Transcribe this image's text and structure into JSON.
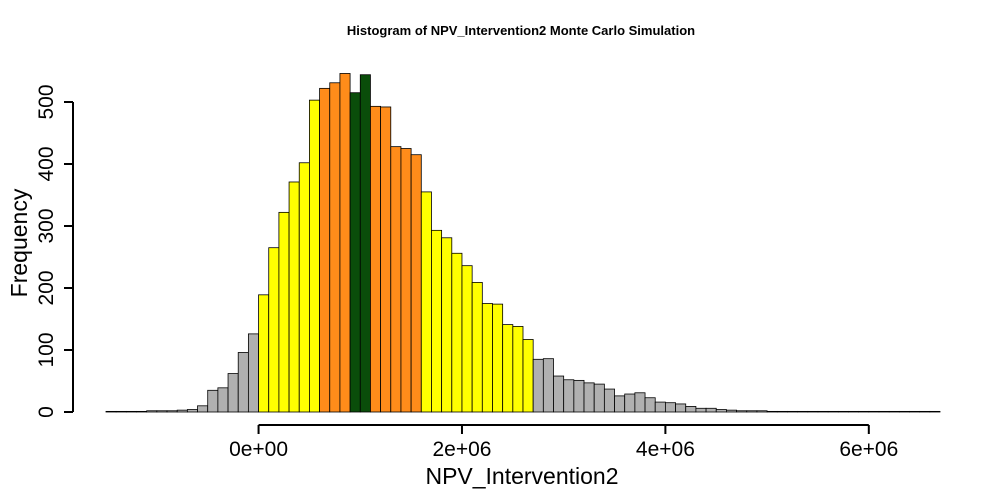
{
  "chart_data": {
    "type": "bar",
    "subtype": "histogram",
    "title": "Histogram of  NPV_Intervention2  Monte Carlo Simulation",
    "xlabel": "NPV_Intervention2",
    "ylabel": "Frequency",
    "bin_start": -1500000,
    "bin_width": 100000,
    "xlim": [
      -1500000,
      6700000
    ],
    "ylim": [
      0,
      550
    ],
    "x_ticks": [
      0,
      2000000,
      4000000,
      6000000
    ],
    "x_tick_labels": [
      "0e+00",
      "2e+06",
      "4e+06",
      "6e+06"
    ],
    "y_ticks": [
      0,
      100,
      200,
      300,
      400,
      500
    ],
    "y_tick_labels": [
      "0",
      "100",
      "200",
      "300",
      "400",
      "500"
    ],
    "grid": false,
    "legend": "none",
    "colors": {
      "gray": "#b0b0b0",
      "yellow": "#ffff00",
      "orange": "#ff8c1a",
      "green": "#0a4d0a"
    },
    "values": [
      1,
      1,
      1,
      1,
      2,
      2,
      2,
      3,
      4,
      10,
      35,
      39,
      62,
      96,
      126,
      189,
      265,
      322,
      371,
      402,
      503,
      522,
      531,
      546,
      515,
      544,
      493,
      492,
      428,
      425,
      415,
      355,
      293,
      281,
      256,
      236,
      209,
      175,
      174,
      141,
      138,
      117,
      85,
      86,
      58,
      52,
      51,
      47,
      45,
      37,
      26,
      29,
      31,
      23,
      16,
      15,
      13,
      9,
      6,
      6,
      4,
      3,
      2,
      2,
      2,
      1,
      1,
      1,
      1,
      1,
      1,
      1,
      1,
      1,
      1,
      1,
      1,
      1,
      1,
      1,
      1,
      1
    ],
    "bar_colors": [
      "gray",
      "gray",
      "gray",
      "gray",
      "gray",
      "gray",
      "gray",
      "gray",
      "gray",
      "gray",
      "gray",
      "gray",
      "gray",
      "gray",
      "gray",
      "yellow",
      "yellow",
      "yellow",
      "yellow",
      "yellow",
      "yellow",
      "orange",
      "orange",
      "orange",
      "green",
      "green",
      "orange",
      "orange",
      "orange",
      "orange",
      "orange",
      "yellow",
      "yellow",
      "yellow",
      "yellow",
      "yellow",
      "yellow",
      "yellow",
      "yellow",
      "yellow",
      "yellow",
      "yellow",
      "gray",
      "gray",
      "gray",
      "gray",
      "gray",
      "gray",
      "gray",
      "gray",
      "gray",
      "gray",
      "gray",
      "gray",
      "gray",
      "gray",
      "gray",
      "gray",
      "gray",
      "gray",
      "gray",
      "gray",
      "gray",
      "gray",
      "gray",
      "gray",
      "gray",
      "gray",
      "gray",
      "gray",
      "gray",
      "gray",
      "gray",
      "gray",
      "gray",
      "gray",
      "gray",
      "gray",
      "gray",
      "gray",
      "gray",
      "gray"
    ]
  }
}
